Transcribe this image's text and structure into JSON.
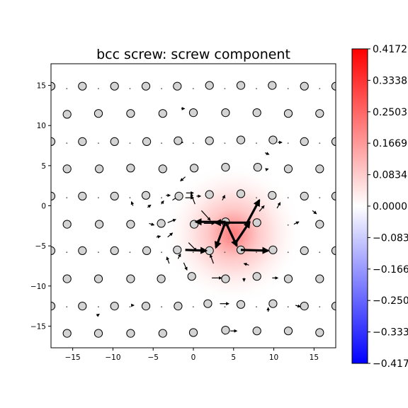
{
  "chart_data": {
    "type": "heatmap",
    "title": "bcc screw: screw component",
    "xlabel": "",
    "ylabel": "",
    "xlim": [
      -17.7,
      17.7
    ],
    "ylim": [
      -17.7,
      17.7
    ],
    "xticks": [
      -15,
      -10,
      -5,
      0,
      5,
      10,
      15
    ],
    "yticks": [
      -15,
      -10,
      -5,
      0,
      5,
      10,
      15
    ],
    "grid": false,
    "colormap": "bwr",
    "colorbar": {
      "vmin": -0.4172,
      "vmax": 0.4172,
      "tick_values": [
        0.4172,
        0.3338,
        0.2503,
        0.1669,
        0.0834,
        0.0,
        -0.0834,
        -0.1669,
        -0.2503,
        -0.3338,
        -0.4172
      ],
      "tick_labels": [
        "0.4172",
        "0.3338",
        "0.2503",
        "0.1669",
        "0.0834",
        "0.0000",
        "−0.083",
        "−0.166",
        "−0.250",
        "−0.333",
        "−0.417"
      ]
    },
    "field_peak": {
      "x": 5.0,
      "y": -3.6,
      "value": 0.4172
    },
    "atom_style": {
      "fill": "#d3d3d3",
      "edge": "#000000"
    },
    "atoms": [
      [
        -17.7,
        14.9
      ],
      [
        -13.8,
        14.9
      ],
      [
        -9.8,
        14.9
      ],
      [
        -5.9,
        14.9
      ],
      [
        -2.0,
        14.9
      ],
      [
        2.0,
        15.0
      ],
      [
        5.9,
        15.0
      ],
      [
        9.8,
        15.0
      ],
      [
        13.8,
        14.9
      ],
      [
        17.7,
        14.9
      ],
      [
        -15.7,
        11.4
      ],
      [
        -11.8,
        11.5
      ],
      [
        -7.8,
        11.5
      ],
      [
        -3.8,
        11.5
      ],
      [
        0.0,
        11.6
      ],
      [
        4.0,
        11.6
      ],
      [
        7.9,
        11.6
      ],
      [
        11.8,
        11.5
      ],
      [
        15.7,
        11.5
      ],
      [
        -17.7,
        8.0
      ],
      [
        -13.8,
        8.0
      ],
      [
        -9.8,
        8.0
      ],
      [
        -5.8,
        8.0
      ],
      [
        -1.9,
        8.1
      ],
      [
        2.0,
        8.1
      ],
      [
        5.9,
        8.2
      ],
      [
        9.9,
        8.2
      ],
      [
        13.8,
        8.0
      ],
      [
        17.7,
        8.0
      ],
      [
        -15.7,
        4.6
      ],
      [
        -11.7,
        4.6
      ],
      [
        -7.8,
        4.7
      ],
      [
        -3.8,
        4.6
      ],
      [
        0.1,
        4.7
      ],
      [
        4.0,
        4.8
      ],
      [
        8.0,
        4.8
      ],
      [
        11.8,
        4.6
      ],
      [
        15.7,
        4.6
      ],
      [
        -17.7,
        1.2
      ],
      [
        -13.8,
        1.2
      ],
      [
        -9.8,
        1.2
      ],
      [
        -5.9,
        1.3
      ],
      [
        -1.8,
        1.2
      ],
      [
        2.0,
        1.4
      ],
      [
        5.9,
        1.5
      ],
      [
        9.8,
        1.3
      ],
      [
        13.8,
        1.2
      ],
      [
        17.7,
        1.2
      ],
      [
        -15.7,
        -2.3
      ],
      [
        -11.7,
        -2.3
      ],
      [
        -7.8,
        -2.3
      ],
      [
        -4.0,
        -2.2
      ],
      [
        0.1,
        -2.3
      ],
      [
        4.0,
        -2.0
      ],
      [
        7.9,
        -2.1
      ],
      [
        15.7,
        -2.3
      ],
      [
        -17.7,
        -5.6
      ],
      [
        -13.8,
        -5.6
      ],
      [
        -9.8,
        -5.6
      ],
      [
        -5.8,
        -5.6
      ],
      [
        -2.0,
        -5.5
      ],
      [
        2.0,
        -5.6
      ],
      [
        5.9,
        -5.5
      ],
      [
        9.9,
        -5.5
      ],
      [
        13.8,
        -5.6
      ],
      [
        17.7,
        -5.6
      ],
      [
        -15.7,
        -9.1
      ],
      [
        -11.8,
        -9.1
      ],
      [
        -7.8,
        -9.1
      ],
      [
        -4.0,
        -9.1
      ],
      [
        -0.2,
        -8.8
      ],
      [
        4.0,
        -9.1
      ],
      [
        7.9,
        -8.8
      ],
      [
        11.8,
        -9.1
      ],
      [
        15.7,
        -9.1
      ],
      [
        -17.7,
        -12.5
      ],
      [
        -13.8,
        -12.5
      ],
      [
        -9.8,
        -12.5
      ],
      [
        -5.9,
        -12.5
      ],
      [
        -1.9,
        -12.5
      ],
      [
        1.8,
        -12.2
      ],
      [
        5.9,
        -12.3
      ],
      [
        9.9,
        -12.2
      ],
      [
        13.8,
        -12.5
      ],
      [
        17.7,
        -12.5
      ],
      [
        -15.7,
        -15.9
      ],
      [
        -11.8,
        -15.9
      ],
      [
        -7.8,
        -15.9
      ],
      [
        -3.8,
        -15.9
      ],
      [
        0.0,
        -15.8
      ],
      [
        4.0,
        -15.5
      ],
      [
        7.9,
        -15.6
      ],
      [
        11.8,
        -15.6
      ],
      [
        15.7,
        -15.8
      ]
    ],
    "arrows_major": [
      [
        6.7,
        -2.1,
        -4.0,
        0.0
      ],
      [
        4.0,
        -2.0,
        -3.7,
        0.0
      ],
      [
        6.7,
        -2.1,
        1.5,
        2.8
      ],
      [
        4.0,
        -2.0,
        -1.2,
        -3.2
      ],
      [
        4.0,
        -2.0,
        1.4,
        -3.0
      ],
      [
        5.2,
        -4.7,
        1.8,
        2.7
      ],
      [
        5.9,
        -5.5,
        3.4,
        -0.1
      ],
      [
        -1.0,
        -5.5,
        2.6,
        -0.1
      ]
    ],
    "arrows_minor": [
      [
        1.0,
        -0.6,
        1.1,
        -1.2
      ],
      [
        0.2,
        0.2,
        -0.5,
        1.3
      ],
      [
        -0.6,
        -4.6,
        1.0,
        -1.0
      ],
      [
        1.3,
        -2.2,
        1.3,
        0.0
      ],
      [
        -3.2,
        -3.9,
        0.6,
        0.5
      ],
      [
        -3.2,
        -2.1,
        1.0,
        0.4
      ],
      [
        2.5,
        -7.2,
        -0.4,
        1.1
      ],
      [
        2.3,
        -9.0,
        1.2,
        0.0
      ],
      [
        3.3,
        -12.2,
        1.1,
        0.0
      ],
      [
        -1.2,
        -7.1,
        0.4,
        -0.9
      ],
      [
        8.2,
        -0.7,
        0.6,
        0.7
      ],
      [
        10.4,
        -0.3,
        0.4,
        0.7
      ],
      [
        14.8,
        -0.6,
        0.5,
        -0.4
      ],
      [
        -2.6,
        0.7,
        0.9,
        0.6
      ],
      [
        -3.4,
        1.3,
        0.5,
        0.0
      ],
      [
        -7.5,
        0.0,
        -0.2,
        0.5
      ],
      [
        -5.7,
        -0.2,
        0.4,
        0.3
      ],
      [
        -4.0,
        0.2,
        0.3,
        0.4
      ],
      [
        -1.0,
        3.6,
        -0.6,
        -0.5
      ],
      [
        -0.9,
        1.6,
        0.9,
        0.0
      ],
      [
        0.4,
        1.2,
        0.5,
        0.0
      ],
      [
        -1.0,
        1.0,
        1.0,
        0.0
      ],
      [
        -5.5,
        -2.2,
        0.6,
        -0.2
      ],
      [
        -4.6,
        -3.9,
        0.5,
        0.1
      ],
      [
        -3.0,
        -7.2,
        -0.3,
        0.8
      ],
      [
        -1.9,
        -6.6,
        0.3,
        0.6
      ],
      [
        6.3,
        -9.0,
        0.0,
        -0.4
      ],
      [
        6.9,
        -7.4,
        -0.6,
        0.2
      ],
      [
        9.8,
        -9.0,
        0.7,
        0.0
      ],
      [
        9.3,
        -13.2,
        0.0,
        0.5
      ],
      [
        12.7,
        -12.4,
        0.6,
        -0.2
      ],
      [
        -1.9,
        7.9,
        0.6,
        0.0
      ],
      [
        3.6,
        0.7,
        0.3,
        0.6
      ],
      [
        8.9,
        6.6,
        0.5,
        -0.2
      ],
      [
        -1.5,
        12.1,
        0.4,
        0.0
      ],
      [
        4.6,
        -15.6,
        0.8,
        0.0
      ],
      [
        -7.7,
        -12.4,
        0.3,
        0.0
      ],
      [
        -12.0,
        -13.7,
        0.3,
        0.2
      ],
      [
        10.5,
        7.9,
        0.5,
        0.0
      ],
      [
        9.0,
        4.5,
        0.3,
        0.1
      ],
      [
        12.5,
        -2.3,
        0.6,
        0.3
      ]
    ]
  }
}
